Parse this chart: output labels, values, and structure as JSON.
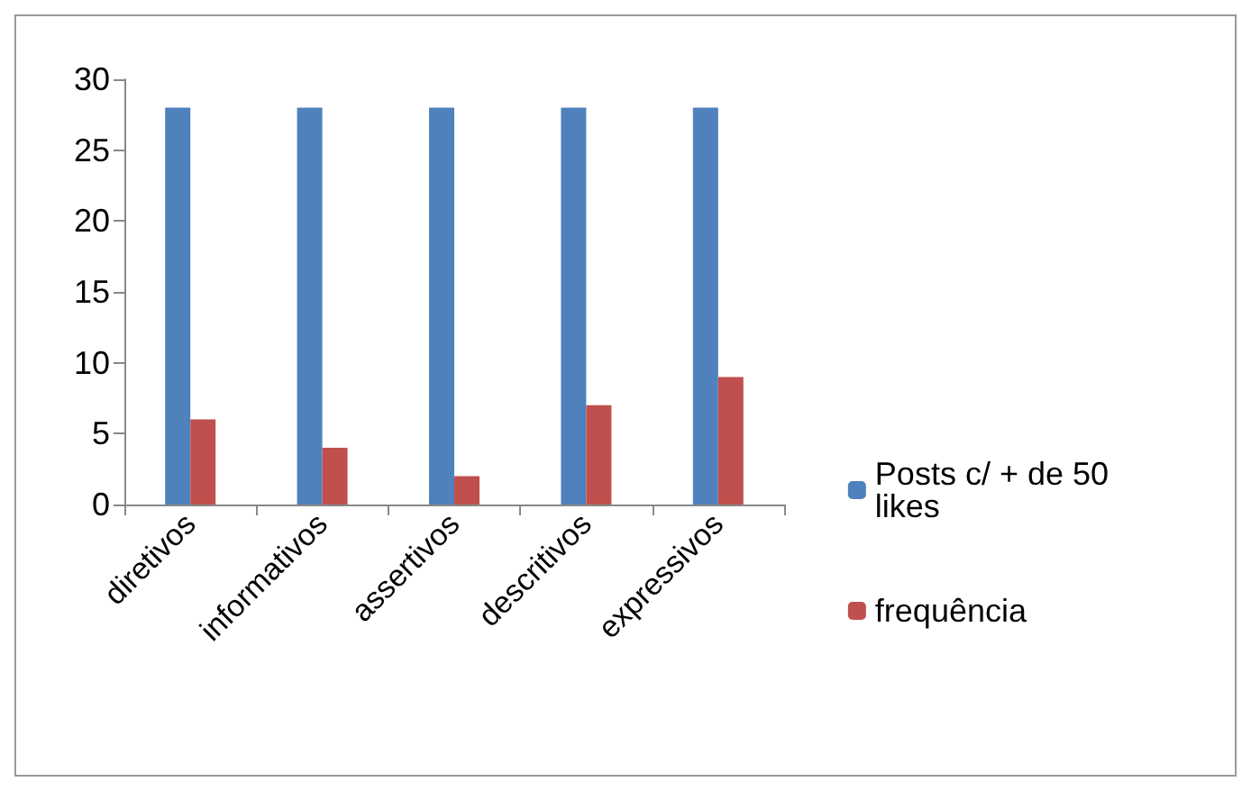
{
  "chart_data": {
    "type": "bar",
    "categories": [
      "diretivos",
      "informativos",
      "assertivos",
      "descritivos",
      "expressivos"
    ],
    "series": [
      {
        "name": "Posts c/ + de 50 likes",
        "color": "#4f81bd",
        "values": [
          28,
          28,
          28,
          28,
          28
        ]
      },
      {
        "name": "frequência",
        "color": "#c0504d",
        "values": [
          6,
          4,
          2,
          7,
          9
        ]
      }
    ],
    "ylim": [
      0,
      30
    ],
    "yticks": [
      0,
      5,
      10,
      15,
      20,
      25,
      30
    ],
    "grid": false,
    "legend": "right"
  }
}
